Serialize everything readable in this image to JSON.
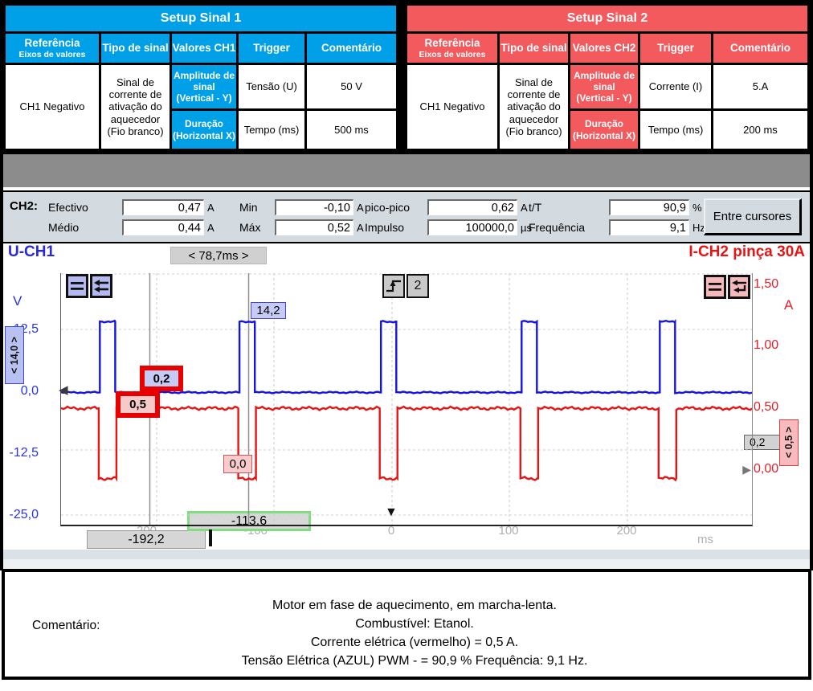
{
  "colors": {
    "setup1_blue": "#00a0e8",
    "setup2_red": "#f25a5e",
    "trace_blue": "#1414e6",
    "trace_red": "#e81414",
    "panel_gray": "#d3dae0",
    "band_gray": "#8c8c8c",
    "cursor_box_green_border": "#82dd82",
    "highlight_red": "#e80000"
  },
  "setup_tables": [
    {
      "title": "Setup Sinal 1",
      "headers": {
        "referencia": "Referência",
        "eixos": "Eixos de valores",
        "tipo": "Tipo de sinal",
        "valores": "Valores CH1",
        "trigger": "Trigger",
        "comentario": "Comentário"
      },
      "rows": [
        {
          "ref": "Amplitude de sinal",
          "ref_sub": "(Vertical - Y)",
          "tipo": "Tensão (U)",
          "valor": "50 V"
        },
        {
          "ref": "Duração",
          "ref_sub": "(Horizontal X)",
          "tipo": "Tempo (ms)",
          "valor": "500 ms"
        }
      ],
      "trigger_value": "CH1 Negativo",
      "comment_value": "Sinal de corrente de ativação do aquecedor (Fio branco)"
    },
    {
      "title": "Setup Sinal 2",
      "headers": {
        "referencia": "Referência",
        "eixos": "Eixos de valores",
        "tipo": "Tipo de sinal",
        "valores": "Valores CH2",
        "trigger": "Trigger",
        "comentario": "Comentário"
      },
      "rows": [
        {
          "ref": "Amplitude de sinal",
          "ref_sub": "(Vertical - Y)",
          "tipo": "Corrente (I)",
          "valor": "5.A"
        },
        {
          "ref": "Duração",
          "ref_sub": "(Horizontal X)",
          "tipo": "Tempo (ms)",
          "valor": "200 ms"
        }
      ],
      "trigger_value": "CH1 Negativo",
      "comment_value": "Sinal de corrente de ativação do aquecedor (Fio branco)"
    }
  ],
  "measurements": {
    "channel_label": "CH2:",
    "fields": [
      {
        "label": "Efectivo",
        "value": "0,47",
        "unit": "A"
      },
      {
        "label": "Médio",
        "value": "0,44",
        "unit": "A"
      },
      {
        "label": "Min",
        "value": "-0,10",
        "unit": "A"
      },
      {
        "label": "Máx",
        "value": "0,52",
        "unit": "A"
      },
      {
        "label": "pico-pico",
        "value": "0,62",
        "unit": "A"
      },
      {
        "label": "Impulso",
        "value": "100000,0",
        "unit": "µs"
      },
      {
        "label": "t/T",
        "value": "90,9",
        "unit": "%"
      },
      {
        "label": "Frequência",
        "value": "9,1",
        "unit": "Hz"
      }
    ],
    "button_label": "Entre cursores"
  },
  "chart": {
    "ch1_title": "U-CH1",
    "timebase": "< 78,7ms >",
    "ch2_title": "I-CH2 pinça 30A",
    "trigger_channel": "2",
    "left_axis": {
      "unit": "V",
      "ticks": [
        "12,5",
        "0,0",
        "-12,5",
        "-25,0"
      ],
      "range_label": "< 14,0 >"
    },
    "right_axis": {
      "unit": "A",
      "ticks": [
        "1,50",
        "1,00",
        "0,50",
        "0,00"
      ],
      "range_label": "< 0,5 >",
      "cursor_level": "0,2"
    },
    "x_axis": {
      "ticks": [
        "-200",
        "-100",
        "0",
        "100",
        "200"
      ],
      "unit": "ms"
    },
    "trace_labels": {
      "peak_voltage": "14,2",
      "blue_cursor_value": "0,2",
      "red_cursor_value": "0,5",
      "red_min_value": "0,0"
    },
    "cursor_readouts": {
      "cursor1": "-192,2",
      "cursor2": "-113,6"
    }
  },
  "chart_data": {
    "type": "line",
    "x_unit": "ms",
    "x_range_ms": [
      -281,
      306
    ],
    "x_ticks": [
      -200,
      -100,
      0,
      100,
      200
    ],
    "left_axis": {
      "unit": "V",
      "range": [
        -26.5,
        23.9
      ],
      "ticks": [
        12.5,
        0,
        -12.5,
        -25
      ]
    },
    "right_axis": {
      "unit": "A",
      "range": [
        -0.43,
        1.58
      ],
      "ticks": [
        1.5,
        1.0,
        0.5,
        0.0
      ]
    },
    "series": [
      {
        "name": "U-CH1 voltage PWM",
        "axis": "left",
        "color": "#1414e6",
        "baseline": 0,
        "pulse_level": 14.2,
        "pulse_centers_ms": [
          -241.5,
          -122.9,
          -2.7,
          116.8,
          234.2
        ],
        "pulse_width_ms": 13,
        "noise": 0.55
      },
      {
        "name": "I-CH2 clamp current",
        "axis": "right",
        "color": "#e81414",
        "baseline": 0.5,
        "pulse_level": -0.06,
        "pulse_centers_ms": [
          -241.5,
          -122.9,
          -2.7,
          116.8,
          234.2
        ],
        "pulse_width_ms": 15,
        "noise": 1.1
      }
    ],
    "cursors_ms": [
      -192.2,
      -113.6
    ],
    "measured": {
      "duty_percent": 90.9,
      "frequency_hz": 9.1,
      "rms_a": 0.47,
      "mean_a": 0.44,
      "min_a": -0.1,
      "max_a": 0.52,
      "peak_peak_a": 0.62,
      "pulse_us": 100000.0
    }
  },
  "comment": {
    "label": "Comentário:",
    "lines": [
      "Motor em fase de aquecimento, em marcha-lenta.",
      "Combustível: Etanol.",
      "Corrente elétrica (vermelho) = 0,5 A.",
      "Tensão Elétrica (AZUL) PWM - = 90,9 % Frequência: 9,1 Hz."
    ]
  }
}
